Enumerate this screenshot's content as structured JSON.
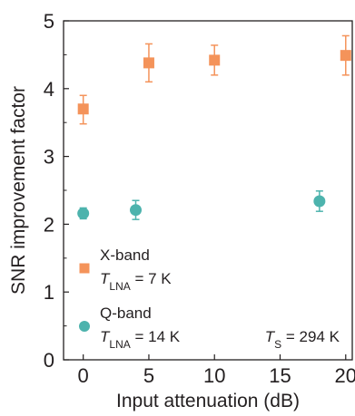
{
  "chart_data": {
    "type": "scatter",
    "xlabel": "Input attenuation (dB)",
    "ylabel": "SNR improvement factor",
    "xlim": [
      -1.5,
      20.5
    ],
    "ylim": [
      0,
      5
    ],
    "xticks": [
      0,
      5,
      10,
      15,
      20
    ],
    "yticks": [
      0,
      1,
      2,
      3,
      4,
      5
    ],
    "grid": false,
    "legend_position": "bottom-left",
    "series": [
      {
        "name": "X-band",
        "marker": "square",
        "color": "#f4935a",
        "sublabel": {
          "var": "T",
          "sub": "LNA",
          "text": " = 7 K"
        },
        "points": [
          {
            "x": 0,
            "y": 3.7,
            "err_low": 0.22,
            "err_high": 0.2
          },
          {
            "x": 5,
            "y": 4.38,
            "err_low": 0.28,
            "err_high": 0.28
          },
          {
            "x": 10,
            "y": 4.42,
            "err_low": 0.22,
            "err_high": 0.22
          },
          {
            "x": 20,
            "y": 4.49,
            "err_low": 0.29,
            "err_high": 0.29
          }
        ]
      },
      {
        "name": "Q-band",
        "marker": "circle",
        "color": "#4db3ad",
        "sublabel": {
          "var": "T",
          "sub": "LNA",
          "text": " = 14 K"
        },
        "points": [
          {
            "x": 0,
            "y": 2.16,
            "err_low": 0.08,
            "err_high": 0.08
          },
          {
            "x": 4,
            "y": 2.21,
            "err_low": 0.14,
            "err_high": 0.14
          },
          {
            "x": 18,
            "y": 2.34,
            "err_low": 0.15,
            "err_high": 0.15
          }
        ]
      }
    ],
    "annotation": {
      "var": "T",
      "sub": "S",
      "text": " = 294 K"
    }
  }
}
